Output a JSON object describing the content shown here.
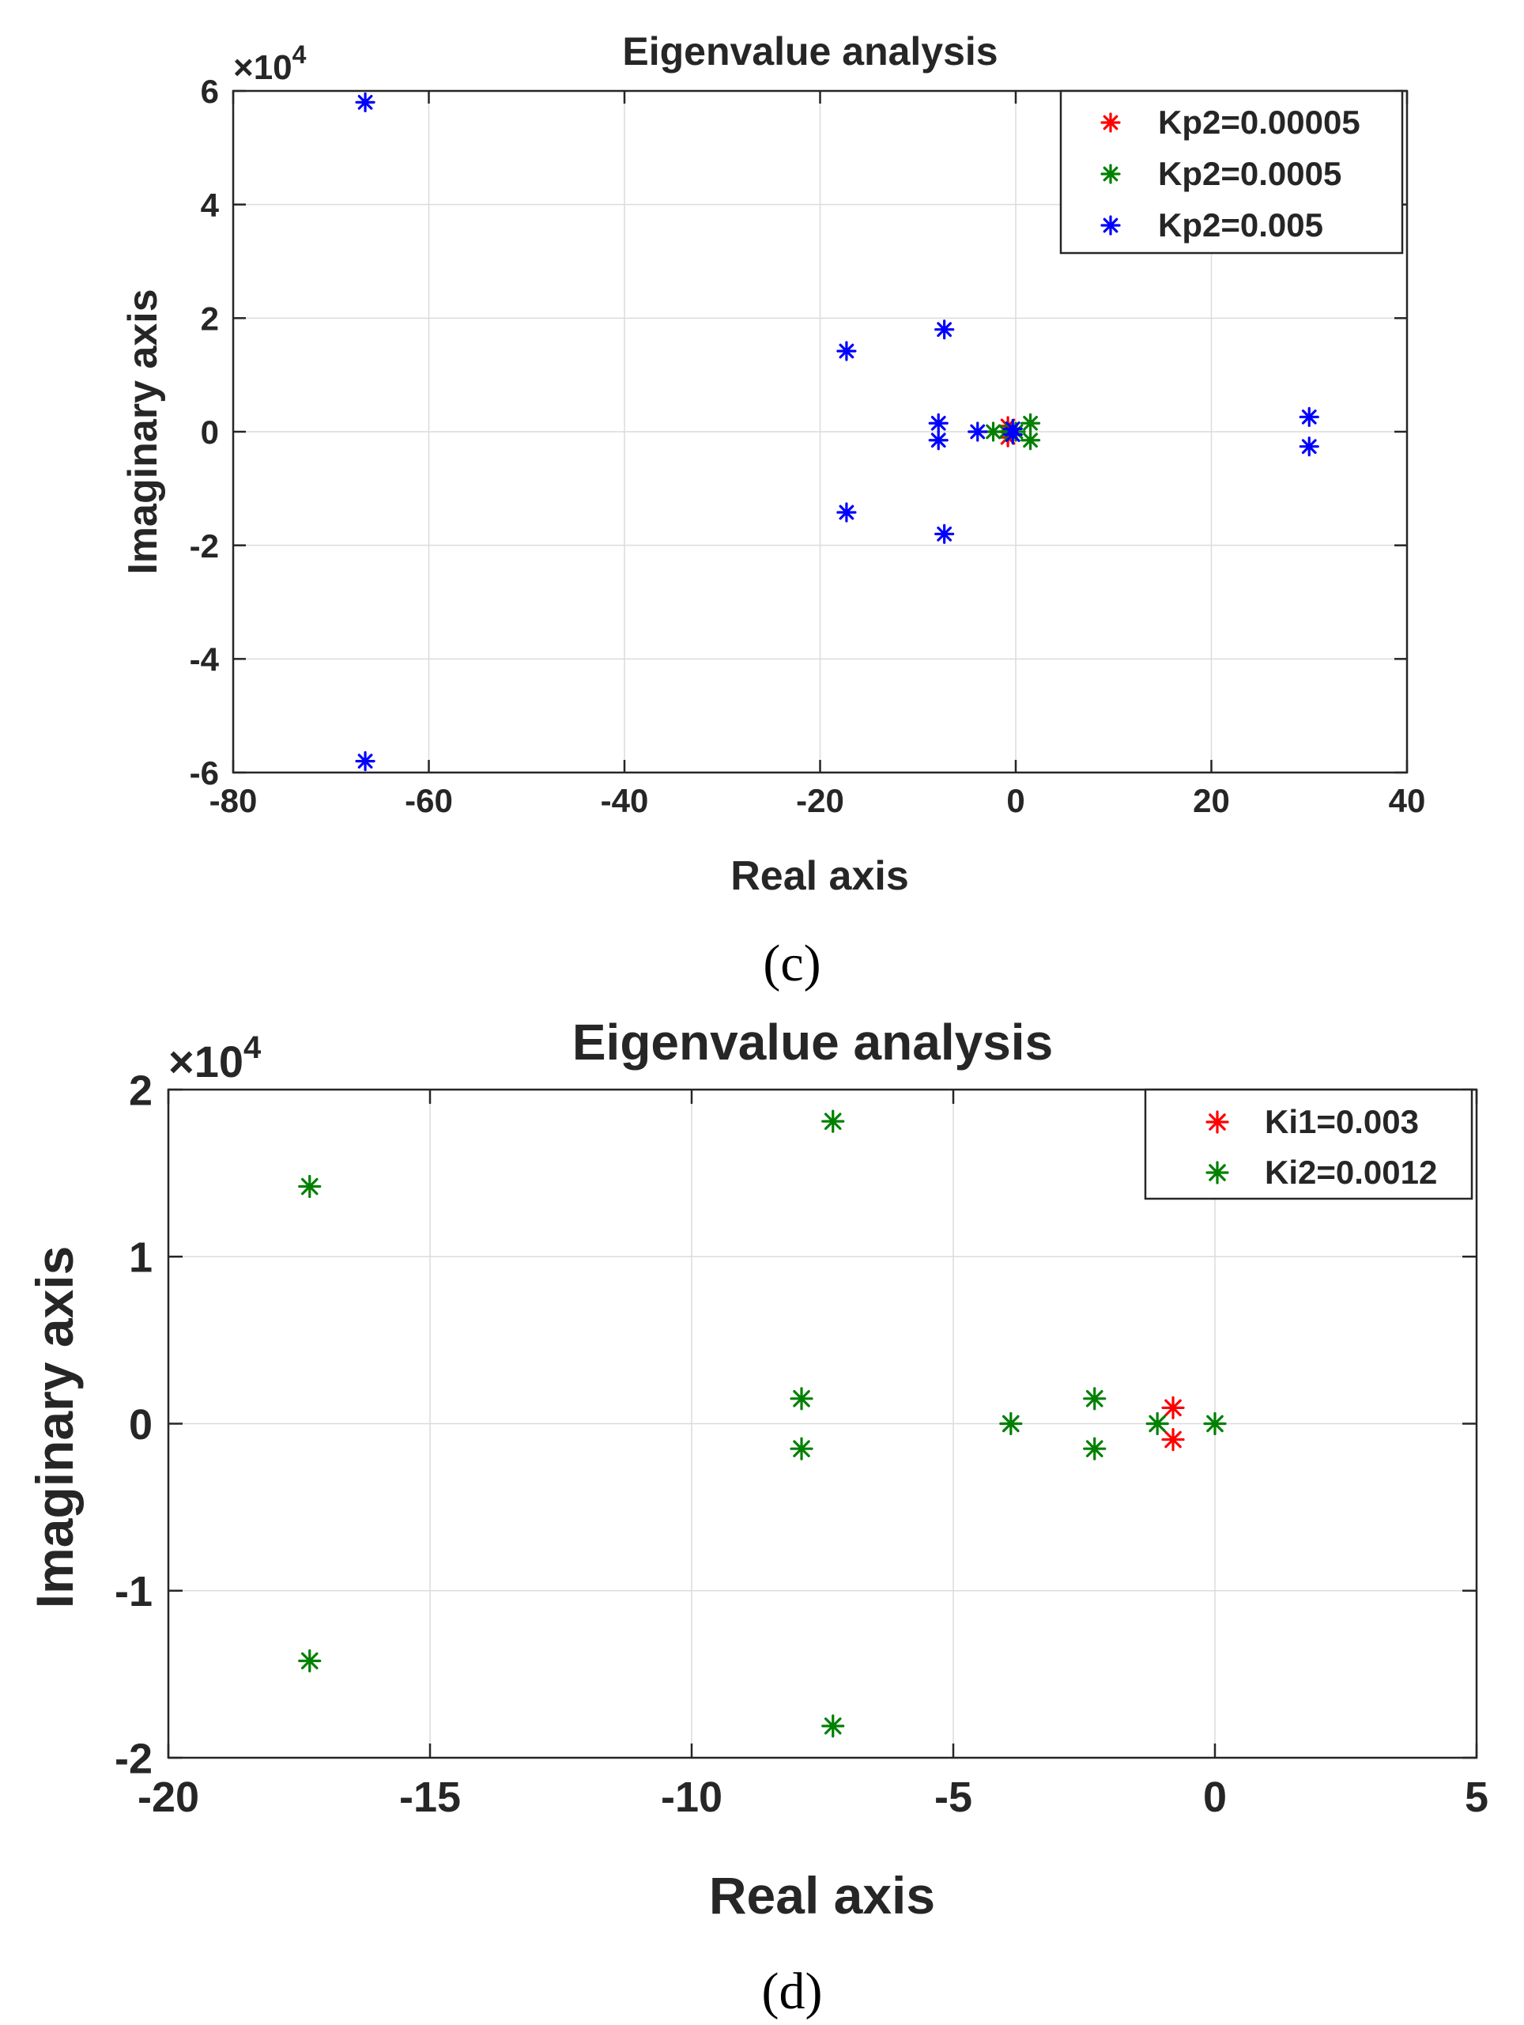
{
  "chart_data": [
    {
      "type": "scatter",
      "panel_label": "(c)",
      "title": "Eigenvalue analysis",
      "xlabel": "Real axis",
      "ylabel": "Imaginary axis",
      "y_exponent_base": "×10",
      "y_exponent_power": "4",
      "xlim": [
        -80,
        40
      ],
      "ylim": [
        -6,
        6
      ],
      "xticks": [
        -80,
        -60,
        -40,
        -20,
        0,
        20,
        40
      ],
      "yticks": [
        -6,
        -4,
        -2,
        0,
        2,
        4,
        6
      ],
      "grid": true,
      "legend_position": "top-right",
      "marker": "*",
      "series": [
        {
          "name": "Kp2=0.00005",
          "color": "#ff0000",
          "points": [
            [
              -0.8,
              0.1
            ],
            [
              -0.8,
              -0.1
            ]
          ]
        },
        {
          "name": "Kp2=0.0005",
          "color": "#008000",
          "points": [
            [
              -2.3,
              0
            ],
            [
              1.5,
              0.15
            ],
            [
              1.5,
              -0.15
            ],
            [
              -1.0,
              0
            ],
            [
              0,
              0
            ]
          ]
        },
        {
          "name": "Kp2=0.005",
          "color": "#0000ff",
          "points": [
            [
              -66.5,
              5.8
            ],
            [
              -66.5,
              -5.8
            ],
            [
              -17.3,
              1.42
            ],
            [
              -17.3,
              -1.42
            ],
            [
              -7.3,
              1.8
            ],
            [
              -7.3,
              -1.8
            ],
            [
              -7.9,
              0.15
            ],
            [
              -7.9,
              -0.15
            ],
            [
              -3.9,
              0
            ],
            [
              -0.3,
              0.05
            ],
            [
              -0.3,
              -0.05
            ],
            [
              30,
              0.26
            ],
            [
              30,
              -0.26
            ]
          ]
        }
      ]
    },
    {
      "type": "scatter",
      "panel_label": "(d)",
      "title": "Eigenvalue analysis",
      "xlabel": "Real axis",
      "ylabel": "Imaginary axis",
      "y_exponent_base": "×10",
      "y_exponent_power": "4",
      "xlim": [
        -20,
        5
      ],
      "ylim": [
        -2,
        2
      ],
      "xticks": [
        -20,
        -15,
        -10,
        -5,
        0,
        5
      ],
      "yticks": [
        -2,
        -1,
        0,
        1,
        2
      ],
      "grid": true,
      "legend_position": "top-right",
      "marker": "*",
      "series": [
        {
          "name": "Ki1=0.003",
          "color": "#ff0000",
          "points": [
            [
              -0.8,
              0.095
            ],
            [
              -0.8,
              -0.095
            ]
          ]
        },
        {
          "name": "Ki2=0.0012",
          "color": "#008000",
          "points": [
            [
              -17.3,
              1.42
            ],
            [
              -17.3,
              -1.42
            ],
            [
              -7.3,
              1.81
            ],
            [
              -7.3,
              -1.81
            ],
            [
              -7.9,
              0.15
            ],
            [
              -7.9,
              -0.15
            ],
            [
              -3.9,
              0
            ],
            [
              -2.3,
              0.15
            ],
            [
              -2.3,
              -0.15
            ],
            [
              -1.1,
              0
            ],
            [
              0,
              0
            ]
          ]
        }
      ]
    }
  ]
}
